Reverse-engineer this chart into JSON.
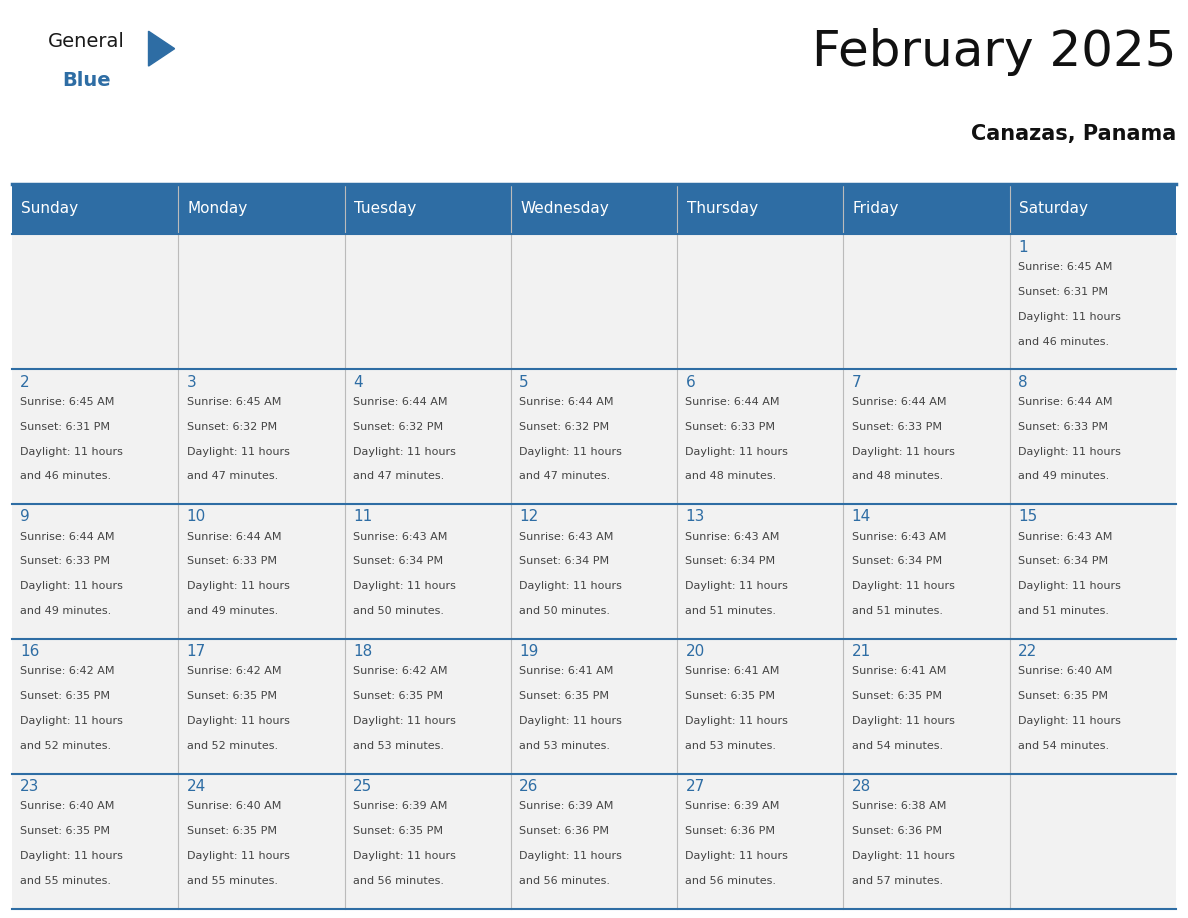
{
  "title": "February 2025",
  "subtitle": "Canazas, Panama",
  "days_of_week": [
    "Sunday",
    "Monday",
    "Tuesday",
    "Wednesday",
    "Thursday",
    "Friday",
    "Saturday"
  ],
  "header_bg": "#2E6DA4",
  "header_text": "#FFFFFF",
  "cell_bg": "#F2F2F2",
  "day_number_color": "#2E6DA4",
  "cell_text_color": "#444444",
  "grid_line_color": "#2E6DA4",
  "logo_general_color": "#1a1a1a",
  "logo_blue_color": "#2E6DA4",
  "weeks": [
    [
      null,
      null,
      null,
      null,
      null,
      null,
      1
    ],
    [
      2,
      3,
      4,
      5,
      6,
      7,
      8
    ],
    [
      9,
      10,
      11,
      12,
      13,
      14,
      15
    ],
    [
      16,
      17,
      18,
      19,
      20,
      21,
      22
    ],
    [
      23,
      24,
      25,
      26,
      27,
      28,
      null
    ]
  ],
  "cell_data": {
    "1": {
      "sunrise": "6:45 AM",
      "sunset": "6:31 PM",
      "daylight": "11 hours and 46 minutes."
    },
    "2": {
      "sunrise": "6:45 AM",
      "sunset": "6:31 PM",
      "daylight": "11 hours and 46 minutes."
    },
    "3": {
      "sunrise": "6:45 AM",
      "sunset": "6:32 PM",
      "daylight": "11 hours and 47 minutes."
    },
    "4": {
      "sunrise": "6:44 AM",
      "sunset": "6:32 PM",
      "daylight": "11 hours and 47 minutes."
    },
    "5": {
      "sunrise": "6:44 AM",
      "sunset": "6:32 PM",
      "daylight": "11 hours and 47 minutes."
    },
    "6": {
      "sunrise": "6:44 AM",
      "sunset": "6:33 PM",
      "daylight": "11 hours and 48 minutes."
    },
    "7": {
      "sunrise": "6:44 AM",
      "sunset": "6:33 PM",
      "daylight": "11 hours and 48 minutes."
    },
    "8": {
      "sunrise": "6:44 AM",
      "sunset": "6:33 PM",
      "daylight": "11 hours and 49 minutes."
    },
    "9": {
      "sunrise": "6:44 AM",
      "sunset": "6:33 PM",
      "daylight": "11 hours and 49 minutes."
    },
    "10": {
      "sunrise": "6:44 AM",
      "sunset": "6:33 PM",
      "daylight": "11 hours and 49 minutes."
    },
    "11": {
      "sunrise": "6:43 AM",
      "sunset": "6:34 PM",
      "daylight": "11 hours and 50 minutes."
    },
    "12": {
      "sunrise": "6:43 AM",
      "sunset": "6:34 PM",
      "daylight": "11 hours and 50 minutes."
    },
    "13": {
      "sunrise": "6:43 AM",
      "sunset": "6:34 PM",
      "daylight": "11 hours and 51 minutes."
    },
    "14": {
      "sunrise": "6:43 AM",
      "sunset": "6:34 PM",
      "daylight": "11 hours and 51 minutes."
    },
    "15": {
      "sunrise": "6:43 AM",
      "sunset": "6:34 PM",
      "daylight": "11 hours and 51 minutes."
    },
    "16": {
      "sunrise": "6:42 AM",
      "sunset": "6:35 PM",
      "daylight": "11 hours and 52 minutes."
    },
    "17": {
      "sunrise": "6:42 AM",
      "sunset": "6:35 PM",
      "daylight": "11 hours and 52 minutes."
    },
    "18": {
      "sunrise": "6:42 AM",
      "sunset": "6:35 PM",
      "daylight": "11 hours and 53 minutes."
    },
    "19": {
      "sunrise": "6:41 AM",
      "sunset": "6:35 PM",
      "daylight": "11 hours and 53 minutes."
    },
    "20": {
      "sunrise": "6:41 AM",
      "sunset": "6:35 PM",
      "daylight": "11 hours and 53 minutes."
    },
    "21": {
      "sunrise": "6:41 AM",
      "sunset": "6:35 PM",
      "daylight": "11 hours and 54 minutes."
    },
    "22": {
      "sunrise": "6:40 AM",
      "sunset": "6:35 PM",
      "daylight": "11 hours and 54 minutes."
    },
    "23": {
      "sunrise": "6:40 AM",
      "sunset": "6:35 PM",
      "daylight": "11 hours and 55 minutes."
    },
    "24": {
      "sunrise": "6:40 AM",
      "sunset": "6:35 PM",
      "daylight": "11 hours and 55 minutes."
    },
    "25": {
      "sunrise": "6:39 AM",
      "sunset": "6:35 PM",
      "daylight": "11 hours and 56 minutes."
    },
    "26": {
      "sunrise": "6:39 AM",
      "sunset": "6:36 PM",
      "daylight": "11 hours and 56 minutes."
    },
    "27": {
      "sunrise": "6:39 AM",
      "sunset": "6:36 PM",
      "daylight": "11 hours and 56 minutes."
    },
    "28": {
      "sunrise": "6:38 AM",
      "sunset": "6:36 PM",
      "daylight": "11 hours and 57 minutes."
    }
  },
  "figsize": [
    11.88,
    9.18
  ],
  "dpi": 100,
  "title_fontsize": 36,
  "subtitle_fontsize": 15,
  "header_fontsize": 11,
  "day_num_fontsize": 11,
  "cell_text_fontsize": 8
}
